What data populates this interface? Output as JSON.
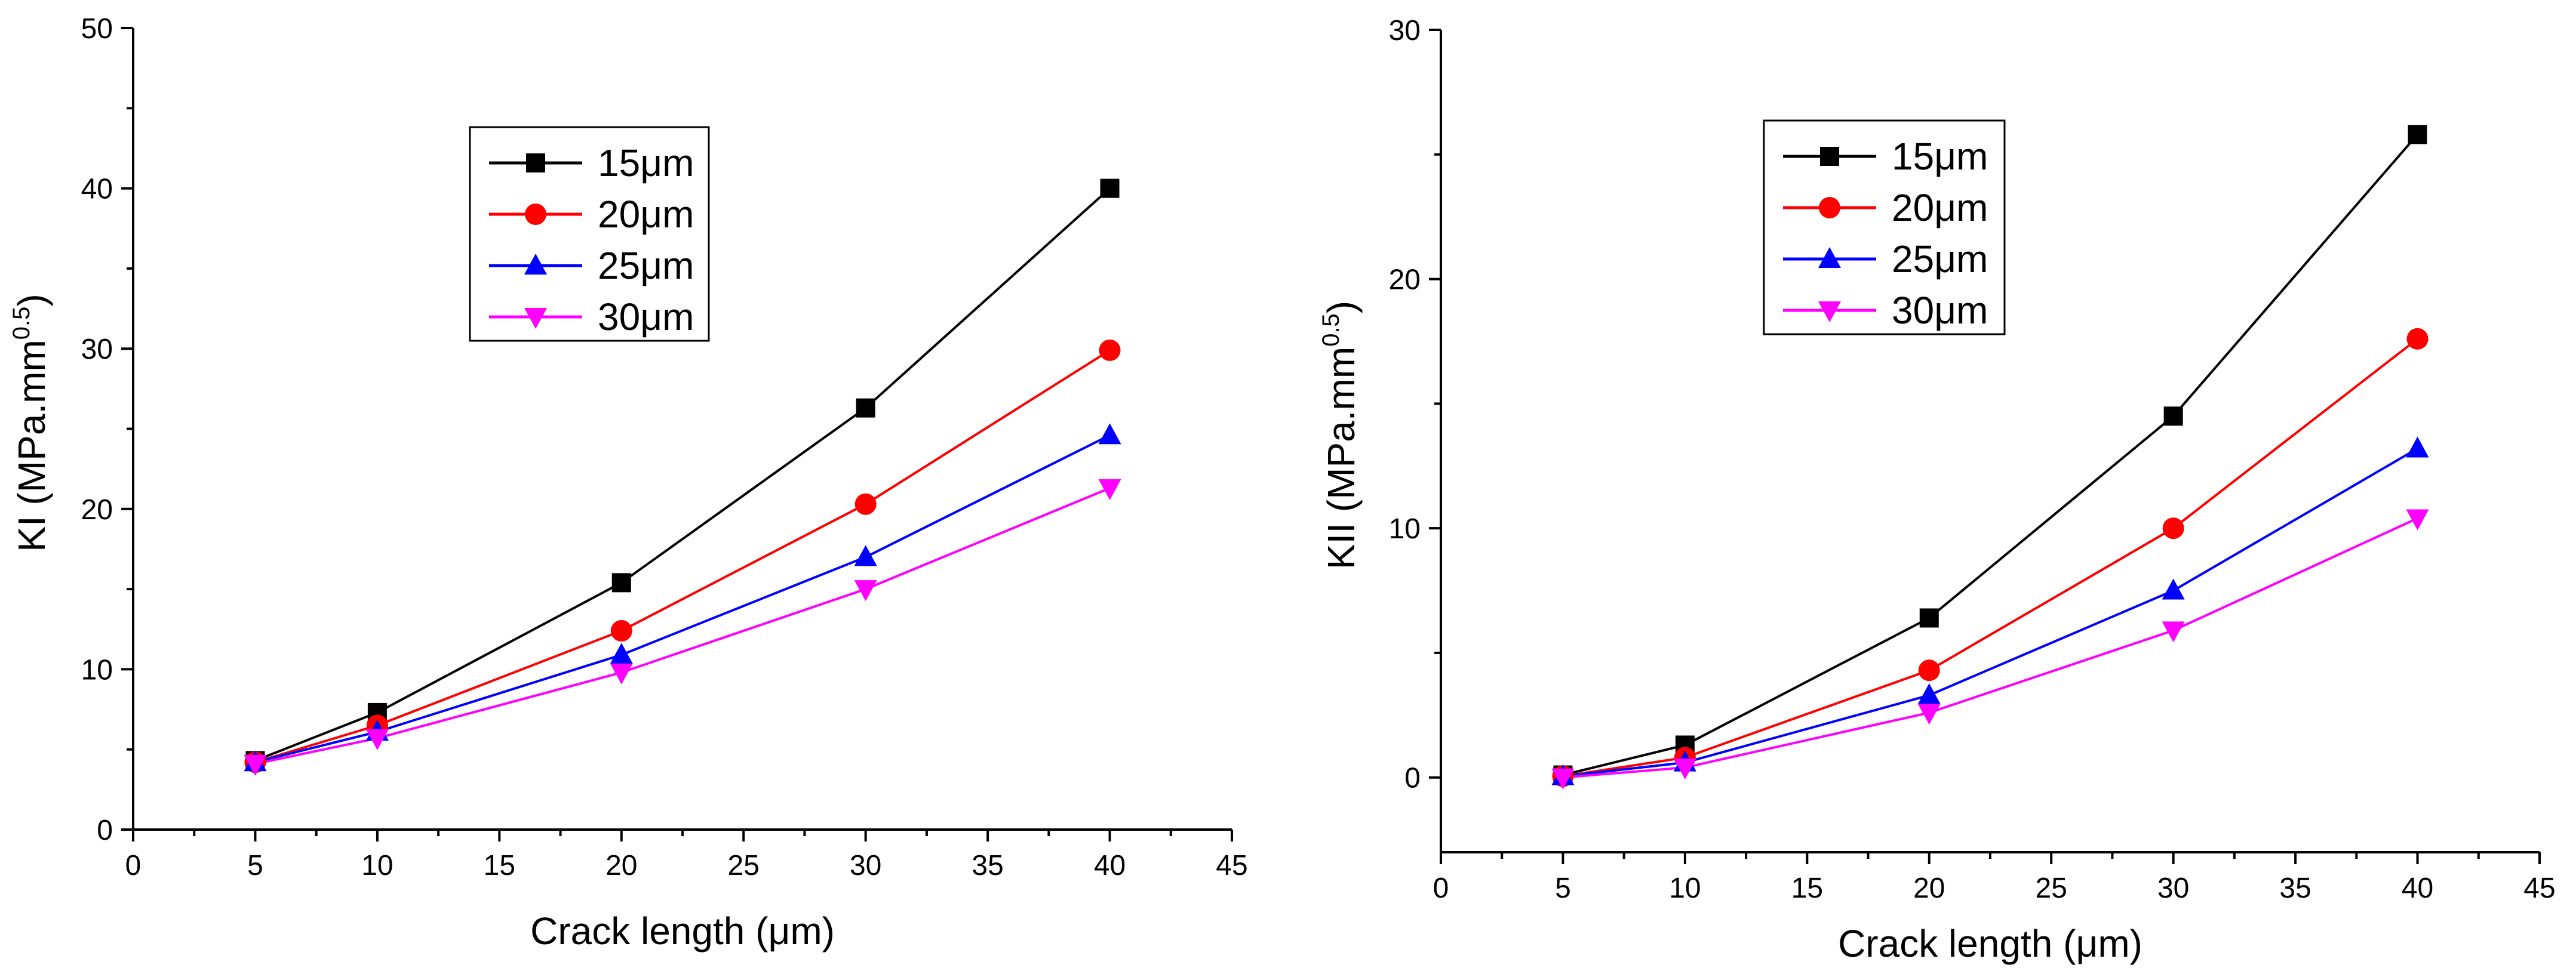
{
  "chart_data": [
    {
      "type": "line",
      "xlabel": "Crack length (μm)",
      "ylabel": "KI (MPa.mm",
      "ylabel_sup": "0.5",
      "ylabel_close": ")",
      "xlim": [
        0,
        45
      ],
      "ylim": [
        0,
        50
      ],
      "x_ticks": [
        "0",
        "5",
        "10",
        "15",
        "20",
        "25",
        "30",
        "35",
        "40",
        "45"
      ],
      "y_ticks": [
        "0",
        "10",
        "20",
        "30",
        "40",
        "50"
      ],
      "x": [
        5,
        10,
        20,
        30,
        40
      ],
      "legend_position": "top-center",
      "grid": false,
      "series": [
        {
          "name": "15μm",
          "color": "#000000",
          "marker": "square",
          "values": [
            4.3,
            7.3,
            15.4,
            26.3,
            40.0
          ]
        },
        {
          "name": "20μm",
          "color": "#ff0000",
          "marker": "circle",
          "values": [
            4.2,
            6.5,
            12.4,
            20.3,
            29.9
          ]
        },
        {
          "name": "25μm",
          "color": "#0000ff",
          "marker": "triangle-up",
          "values": [
            4.2,
            6.1,
            10.9,
            17.0,
            24.6
          ]
        },
        {
          "name": "30μm",
          "color": "#ff00ff",
          "marker": "triangle-down",
          "values": [
            4.1,
            5.7,
            9.8,
            15.0,
            21.3
          ]
        }
      ]
    },
    {
      "type": "line",
      "xlabel": "Crack length (μm)",
      "ylabel": "KII (MPa.mm",
      "ylabel_sup": "0.5",
      "ylabel_close": ")",
      "xlim": [
        0,
        45
      ],
      "ylim": [
        -3,
        30
      ],
      "x_ticks": [
        "0",
        "5",
        "10",
        "15",
        "20",
        "25",
        "30",
        "35",
        "40",
        "45"
      ],
      "y_ticks": [
        "0",
        "10",
        "20",
        "30"
      ],
      "x": [
        5,
        10,
        20,
        30,
        40
      ],
      "legend_position": "top-center",
      "grid": false,
      "series": [
        {
          "name": "15μm",
          "color": "#000000",
          "marker": "square",
          "values": [
            0.1,
            1.3,
            6.4,
            14.5,
            25.8
          ]
        },
        {
          "name": "20μm",
          "color": "#ff0000",
          "marker": "circle",
          "values": [
            0.05,
            0.8,
            4.3,
            10.0,
            17.6
          ]
        },
        {
          "name": "25μm",
          "color": "#0000ff",
          "marker": "triangle-up",
          "values": [
            0.05,
            0.6,
            3.3,
            7.5,
            13.2
          ]
        },
        {
          "name": "30μm",
          "color": "#ff00ff",
          "marker": "triangle-down",
          "values": [
            0.0,
            0.4,
            2.6,
            5.9,
            10.4
          ]
        }
      ]
    }
  ]
}
